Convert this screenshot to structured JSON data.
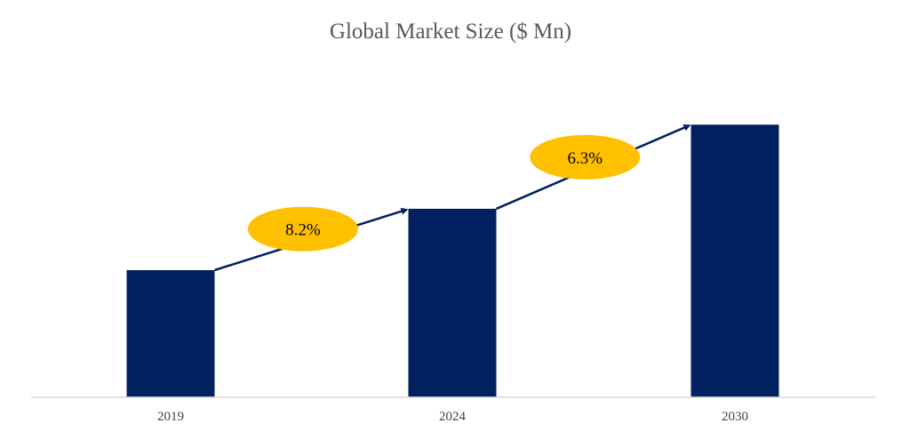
{
  "chart_data": {
    "type": "bar",
    "title": "Global Market Size ($ Mn)",
    "categories": [
      "2019",
      "2024",
      "2030"
    ],
    "values": [
      100,
      148.3,
      214.5
    ],
    "value_note": "relative (no value axis shown)",
    "xlabel": "",
    "ylabel": "",
    "ylim": [
      0,
      220
    ],
    "grid": false,
    "legend": "none",
    "annotations": [
      {
        "from": "2019",
        "to": "2024",
        "label": "8.2%"
      },
      {
        "from": "2024",
        "to": "2030",
        "label": "6.3%"
      }
    ],
    "colors": {
      "bar": "#002060",
      "arrow": "#002060",
      "badge": "#FFC000",
      "axis": "#D9D9D9"
    }
  }
}
